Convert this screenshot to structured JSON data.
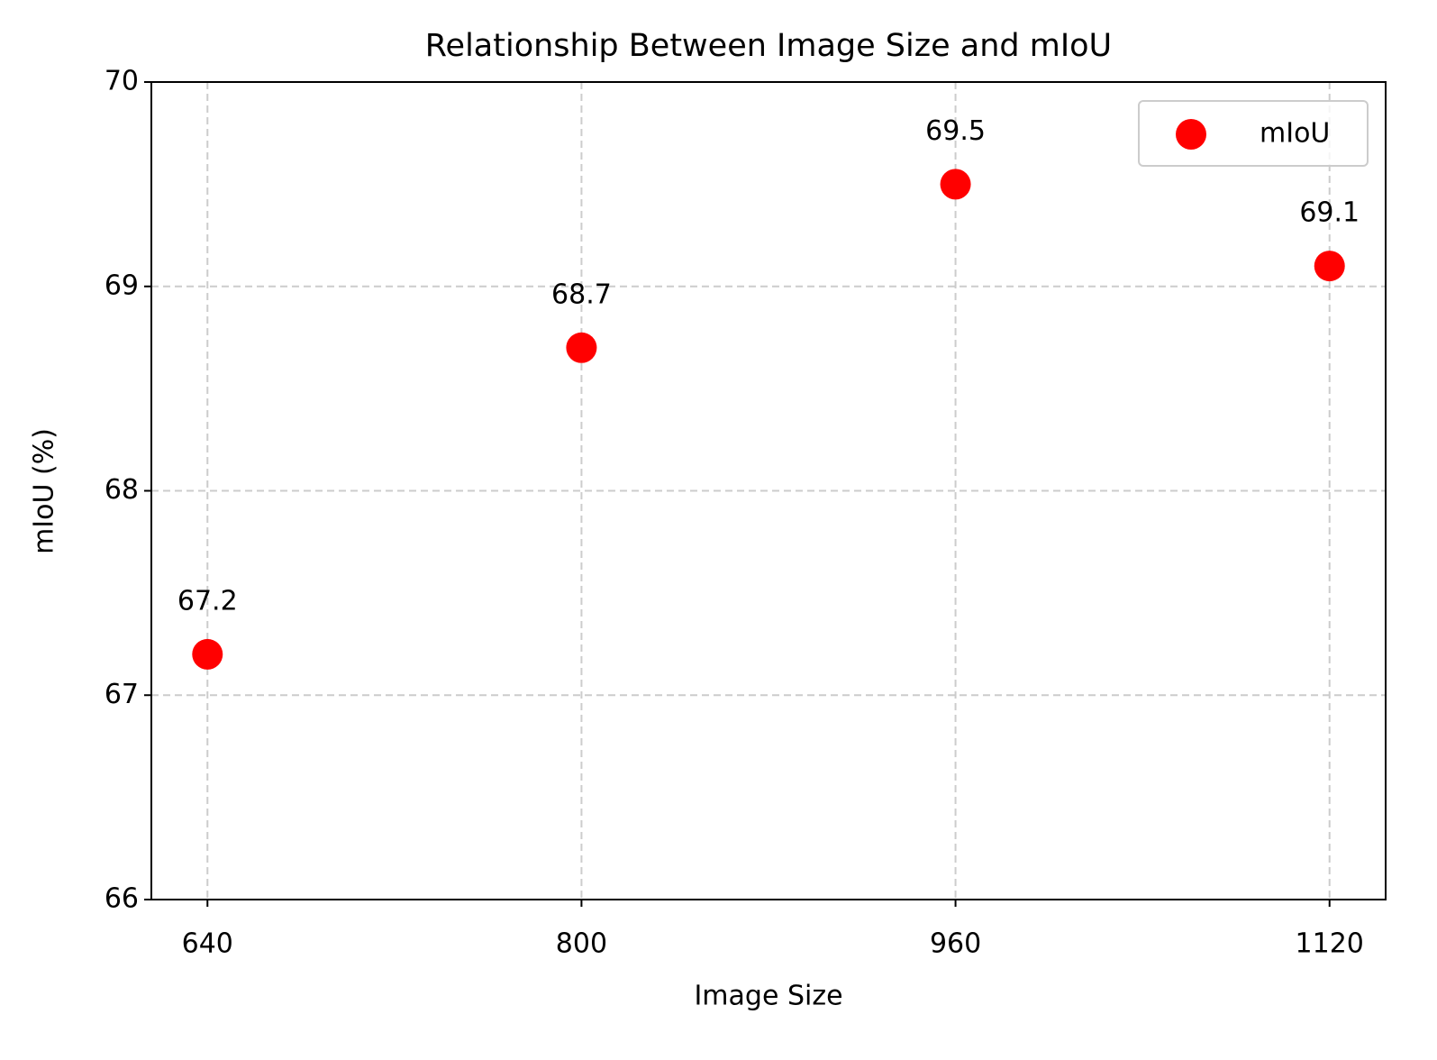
{
  "chart_data": {
    "type": "scatter",
    "title": "Relationship Between Image Size and mIoU",
    "x_label": "Image Size",
    "y_label": "mIoU (%)",
    "x": [
      640,
      800,
      960,
      1120
    ],
    "series": [
      {
        "name": "mIoU",
        "color": "#ff0000",
        "values": [
          67.2,
          68.7,
          69.5,
          69.1
        ]
      }
    ],
    "xlim": [
      616,
      1144
    ],
    "xticks": [
      640,
      800,
      960,
      1120
    ],
    "ylim": [
      66,
      70
    ],
    "yticks": [
      66,
      67,
      68,
      69,
      70
    ],
    "grid": true,
    "legend": "upper right"
  }
}
